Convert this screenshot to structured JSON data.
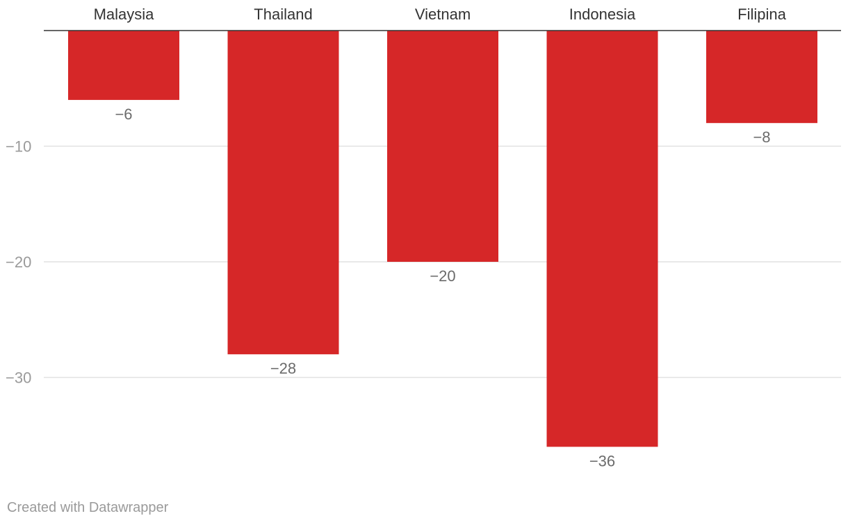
{
  "chart_data": {
    "type": "bar",
    "orientation": "vertical",
    "categories": [
      "Malaysia",
      "Thailand",
      "Vietnam",
      "Indonesia",
      "Filipina"
    ],
    "values": [
      -6,
      -28,
      -20,
      -36,
      -8
    ],
    "value_labels": [
      "−6",
      "−28",
      "−20",
      "−36",
      "−8"
    ],
    "yticks": [
      -10,
      -20,
      -30
    ],
    "ytick_labels": [
      "−10",
      "−20",
      "−30"
    ],
    "ylim": [
      -40,
      0
    ],
    "grid": true,
    "bar_color": "#d62728",
    "title": "",
    "xlabel": "",
    "ylabel": ""
  },
  "footer": {
    "credit": "Created with Datawrapper"
  }
}
